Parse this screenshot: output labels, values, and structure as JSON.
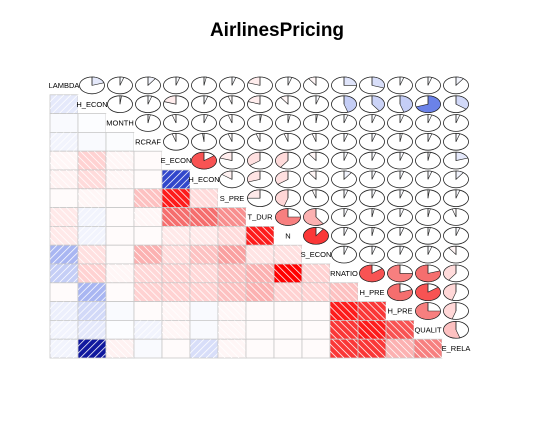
{
  "chart_data": {
    "type": "heatmap",
    "title": "AirlinesPricing",
    "upper_panel": "pie",
    "lower_panel": "shade",
    "diagonal_labels": [
      "LAMBDA",
      "H_ECON",
      "MONTH",
      "RCRAF",
      "E_ECON",
      "H_ECON",
      "S_PRE",
      "T_DUR",
      "N",
      "S_ECON",
      "RNATIO",
      "H_PRE",
      "H_PRE",
      "QUALIT",
      "E_RELA"
    ],
    "values": [
      [
        1.0,
        0.2,
        0.05,
        0.1,
        0.05,
        0.03,
        0.05,
        -0.2,
        0.05,
        -0.1,
        0.25,
        0.3,
        0.05,
        0.05,
        0.1
      ],
      [
        0.2,
        1.0,
        0.02,
        0.05,
        -0.2,
        0.05,
        -0.05,
        -0.2,
        -0.1,
        0.05,
        0.45,
        0.4,
        0.45,
        0.7,
        0.35
      ],
      [
        0.05,
        0.02,
        1.0,
        0.03,
        -0.05,
        0.05,
        -0.05,
        0.02,
        0.03,
        0.02,
        0.05,
        0.05,
        0.05,
        0.05,
        0.05
      ],
      [
        0.1,
        0.05,
        0.03,
        1.0,
        -0.05,
        -0.02,
        -0.05,
        -0.05,
        -0.05,
        -0.05,
        0.05,
        0.05,
        0.03,
        0.05,
        0.05
      ],
      [
        -0.1,
        -0.5,
        -0.1,
        -0.05,
        1.0,
        -0.85,
        -0.2,
        -0.35,
        -0.4,
        -0.1,
        0.05,
        0.05,
        0.05,
        0.03,
        0.2
      ],
      [
        -0.15,
        -0.4,
        -0.1,
        -0.05,
        0.85,
        1.0,
        -0.15,
        -0.3,
        -0.35,
        -0.1,
        0.1,
        0.05,
        0.05,
        0.05,
        0.1
      ],
      [
        -0.05,
        -0.1,
        -0.05,
        -0.55,
        -0.95,
        -0.4,
        1.0,
        -0.25,
        -0.45,
        -0.05,
        0.05,
        0.05,
        0.05,
        0.02,
        0.05
      ],
      [
        -0.25,
        0.1,
        -0.05,
        -0.1,
        -0.8,
        -0.8,
        -0.7,
        1.0,
        -0.75,
        -0.6,
        0.05,
        0.03,
        0.05,
        0.03,
        -0.05
      ],
      [
        -0.25,
        0.1,
        -0.05,
        -0.05,
        -0.25,
        -0.25,
        -0.4,
        -0.95,
        1.0,
        -0.9,
        0.05,
        0.03,
        0.05,
        0.03,
        0.05
      ],
      [
        0.55,
        -0.35,
        -0.05,
        -0.6,
        -0.4,
        -0.55,
        -0.65,
        -0.3,
        -0.35,
        1.0,
        0.05,
        0.05,
        0.05,
        0.05,
        -0.1
      ],
      [
        0.45,
        -0.5,
        -0.1,
        -0.45,
        -0.5,
        -0.45,
        -0.55,
        -0.6,
        -1.0,
        -0.5,
        1.0,
        -0.85,
        -0.75,
        -0.8,
        -0.4
      ],
      [
        -0.05,
        0.55,
        -0.05,
        -0.5,
        -0.5,
        -0.5,
        -0.55,
        -0.6,
        -0.5,
        -0.5,
        -0.55,
        1.0,
        -0.8,
        -0.85,
        -0.45
      ],
      [
        0.15,
        0.35,
        0.05,
        -0.05,
        -0.1,
        0.05,
        -0.1,
        -0.05,
        -0.05,
        -0.05,
        -0.95,
        -0.9,
        1.0,
        -0.75,
        -0.45
      ],
      [
        0.1,
        0.2,
        0.02,
        0.1,
        -0.1,
        0.05,
        -0.1,
        -0.05,
        -0.05,
        -0.05,
        -0.9,
        -0.95,
        -0.85,
        1.0,
        -0.55
      ],
      [
        0.1,
        0.95,
        -0.15,
        0.05,
        -0.05,
        0.3,
        -0.1,
        -0.05,
        -0.05,
        -0.05,
        -0.9,
        -0.9,
        -0.6,
        -0.75,
        1.0
      ]
    ]
  }
}
